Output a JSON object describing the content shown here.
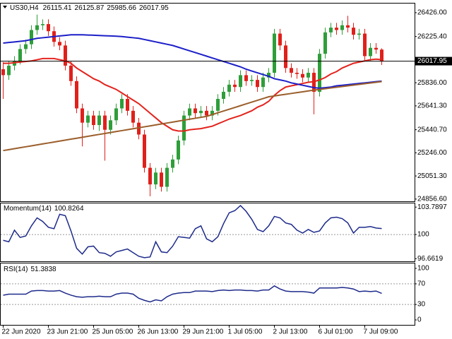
{
  "chart_data": [
    {
      "type": "candlestick",
      "title": "US30,H4",
      "categories": [
        "22 Jun 2020",
        null,
        null,
        null,
        null,
        null,
        null,
        null,
        "23 Jun 21:00",
        null,
        null,
        null,
        null,
        null,
        null,
        null,
        "25 Jun 05:00",
        null,
        null,
        null,
        null,
        null,
        null,
        null,
        "26 Jun 13:00",
        null,
        null,
        null,
        null,
        null,
        null,
        null,
        "29 Jun 21:00",
        null,
        null,
        null,
        null,
        null,
        null,
        null,
        "1 Jul 05:00",
        null,
        null,
        null,
        null,
        null,
        null,
        null,
        "2 Jul 13:00",
        null,
        null,
        null,
        null,
        null,
        null,
        null,
        "6 Jul 01:00",
        null,
        null,
        null,
        null,
        null,
        null,
        null,
        "7 Jul 09:00",
        null,
        null,
        null
      ],
      "open": [
        25950,
        25900,
        25980,
        26020,
        26120,
        26160,
        26280,
        26320,
        26330,
        26270,
        26180,
        26150,
        25980,
        25850,
        25620,
        25500,
        25560,
        25480,
        25560,
        25440,
        25520,
        25620,
        25700,
        25600,
        25500,
        25400,
        25120,
        24980,
        25080,
        24960,
        25120,
        25190,
        25350,
        25560,
        25620,
        25580,
        25600,
        25560,
        25600,
        25700,
        25760,
        25820,
        25800,
        25900,
        25850,
        25860,
        25800,
        25880,
        25920,
        26250,
        26150,
        25960,
        25920,
        25910,
        25880,
        25920,
        25760,
        26080,
        26260,
        26300,
        26280,
        26320,
        26300,
        26240,
        26250,
        26060,
        26130,
        26115.41
      ],
      "high": [
        26010,
        26020,
        26060,
        26160,
        26200,
        26320,
        26410,
        26370,
        26370,
        26310,
        26220,
        26190,
        26020,
        25890,
        25660,
        25600,
        25600,
        25600,
        25600,
        25560,
        25660,
        25740,
        25740,
        25640,
        25540,
        25440,
        25160,
        25120,
        25120,
        25160,
        25230,
        25390,
        25600,
        25660,
        25660,
        25640,
        25640,
        25640,
        25740,
        25800,
        25860,
        25860,
        25940,
        25940,
        25900,
        25900,
        25920,
        25960,
        26290,
        26290,
        26190,
        26000,
        25960,
        25950,
        25960,
        25960,
        26120,
        26300,
        26340,
        26340,
        26360,
        26400,
        26340,
        26290,
        26290,
        26170,
        26170,
        26125.87
      ],
      "low": [
        25700,
        25860,
        25940,
        25990,
        26080,
        26120,
        26240,
        26280,
        26230,
        26140,
        26110,
        25940,
        25810,
        25580,
        25300,
        25460,
        25440,
        25430,
        25180,
        25400,
        25480,
        25580,
        25560,
        25460,
        25360,
        25080,
        24880,
        24940,
        24920,
        24920,
        25080,
        25150,
        25310,
        25520,
        25540,
        25540,
        25520,
        25520,
        25560,
        25660,
        25720,
        25760,
        25760,
        25810,
        25810,
        25760,
        25760,
        25840,
        25880,
        26110,
        25920,
        25880,
        25870,
        25840,
        25840,
        25570,
        25720,
        26040,
        26220,
        26240,
        26240,
        26260,
        26200,
        26200,
        26020,
        26020,
        26080,
        25985.66
      ],
      "close": [
        25900,
        25980,
        26020,
        26120,
        26160,
        26280,
        26320,
        26330,
        26270,
        26180,
        26150,
        25980,
        25850,
        25620,
        25500,
        25560,
        25480,
        25560,
        25440,
        25520,
        25620,
        25700,
        25600,
        25500,
        25400,
        25120,
        24980,
        25080,
        24960,
        25120,
        25190,
        25350,
        25560,
        25620,
        25580,
        25600,
        25560,
        25600,
        25700,
        25760,
        25820,
        25800,
        25900,
        25850,
        25860,
        25800,
        25880,
        25920,
        26250,
        26150,
        25960,
        25920,
        25910,
        25880,
        25920,
        25760,
        26080,
        26260,
        26300,
        26280,
        26320,
        26300,
        26240,
        26250,
        26060,
        26130,
        26115.41,
        26017.95
      ],
      "up_color": "#2e9e3a",
      "down_color": "#e0201b",
      "overlays": [
        {
          "color": "#e3231d",
          "values": [
            26000,
            26000,
            26005,
            26010,
            26015,
            26020,
            26030,
            26040,
            26040,
            26040,
            26030,
            26020,
            26000,
            25960,
            25930,
            25900,
            25870,
            25850,
            25820,
            25800,
            25780,
            25750,
            25720,
            25690,
            25660,
            25620,
            25580,
            25540,
            25500,
            25470,
            25440,
            25430,
            25430,
            25440,
            25445,
            25450,
            25460,
            25470,
            25490,
            25510,
            25530,
            25545,
            25560,
            25580,
            25600,
            25630,
            25650,
            25680,
            25730,
            25770,
            25800,
            25810,
            25820,
            25830,
            25840,
            25845,
            25860,
            25880,
            25910,
            25930,
            25960,
            25980,
            26000,
            26010,
            26020,
            26030,
            26035,
            26030
          ]
        },
        {
          "color": "#1c1fc8",
          "values": [
            26170,
            26175,
            26180,
            26185,
            26190,
            26200,
            26210,
            26215,
            26220,
            26225,
            26230,
            26235,
            26240,
            26240,
            26240,
            26238,
            26236,
            26234,
            26232,
            26230,
            26228,
            26225,
            26220,
            26215,
            26210,
            26200,
            26190,
            26180,
            26170,
            26160,
            26150,
            26135,
            26120,
            26105,
            26090,
            26075,
            26060,
            26045,
            26030,
            26015,
            26000,
            25985,
            25970,
            25950,
            25935,
            25920,
            25905,
            25890,
            25870,
            25860,
            25850,
            25835,
            25825,
            25815,
            25805,
            25795,
            25790,
            25795,
            25800,
            25810,
            25815,
            25820,
            25825,
            25830,
            25835,
            25840,
            25845,
            25850
          ]
        },
        {
          "color": "#9b5e2b",
          "values": [
            25265,
            25273,
            25281,
            25289,
            25297,
            25305,
            25313,
            25321,
            25329,
            25337,
            25345,
            25353,
            25361,
            25369,
            25377,
            25385,
            25393,
            25401,
            25409,
            25417,
            25425,
            25433,
            25441,
            25449,
            25457,
            25465,
            25473,
            25481,
            25489,
            25497,
            25505,
            25513,
            25521,
            25529,
            25537,
            25545,
            25553,
            25568,
            25583,
            25598,
            25613,
            25628,
            25643,
            25658,
            25673,
            25688,
            25703,
            25718,
            25725,
            25732,
            25739,
            25746,
            25753,
            25760,
            25767,
            25774,
            25780,
            25786,
            25792,
            25798,
            25804,
            25810,
            25816,
            25822,
            25828,
            25834,
            25840,
            25846
          ]
        }
      ],
      "ylim": [
        24838,
        26503
      ],
      "yticks": [
        {
          "value": 26426,
          "label": "26426.00"
        },
        {
          "value": 26225.4,
          "label": "26225.40"
        },
        {
          "value": 25836,
          "label": "25836.00"
        },
        {
          "value": 25641.3,
          "label": "25641.30"
        },
        {
          "value": 25440.7,
          "label": "25440.70"
        },
        {
          "value": 25246,
          "label": "25246.00"
        },
        {
          "value": 25051.3,
          "label": "25051.30"
        },
        {
          "value": 24856.6,
          "label": "24856.60"
        }
      ]
    },
    {
      "type": "line",
      "title": "Momentum(14)",
      "color": "#1d2a8a",
      "values": [
        99.2,
        99.0,
        100.6,
        99.6,
        99.8,
        101.2,
        102.3,
        101.8,
        101.0,
        100.8,
        102.8,
        102.6,
        100.5,
        98.1,
        97.3,
        98.3,
        98.4,
        97.5,
        97.4,
        97.0,
        97.6,
        97.8,
        98.0,
        97.5,
        97.0,
        96.8,
        96.9,
        99.0,
        97.6,
        97.5,
        98.4,
        99.7,
        99.6,
        99.5,
        100.8,
        101.2,
        99.4,
        99.0,
        99.7,
        101.5,
        103.0,
        103.3,
        104.0,
        103.2,
        102.1,
        100.7,
        100.4,
        101.2,
        102.5,
        102.3,
        101.6,
        101.4,
        100.6,
        100.2,
        100.7,
        100.3,
        100.5,
        101.6,
        102.3,
        102.4,
        102.2,
        101.6,
        100.2,
        101.0,
        101.0,
        101.1,
        100.9,
        100.8264
      ],
      "ylim": [
        96.3,
        104.3
      ],
      "yticks": [
        103.7897,
        100,
        96.6619
      ],
      "levels": [
        100
      ]
    },
    {
      "type": "line",
      "title": "RSI(14)",
      "color": "#1d2a8a",
      "values": [
        48,
        50,
        50,
        50,
        50,
        56,
        57,
        57,
        56,
        56,
        57,
        52,
        48,
        45,
        44,
        45,
        45,
        46,
        45,
        45,
        50,
        52,
        52,
        50,
        42,
        38,
        35,
        39,
        37,
        45,
        50,
        52,
        53,
        53,
        56,
        56,
        56,
        55,
        57,
        58,
        57,
        58,
        58,
        57,
        57,
        56,
        58,
        58,
        66,
        60,
        56,
        55,
        55,
        55,
        54,
        52,
        62,
        62,
        62,
        62,
        63,
        62,
        60,
        55,
        56,
        55,
        56,
        51.3838
      ],
      "ylim": [
        -9.6,
        109.6
      ],
      "yticks": [
        100,
        70,
        30,
        0
      ],
      "levels": [
        70,
        30
      ]
    }
  ]
}
